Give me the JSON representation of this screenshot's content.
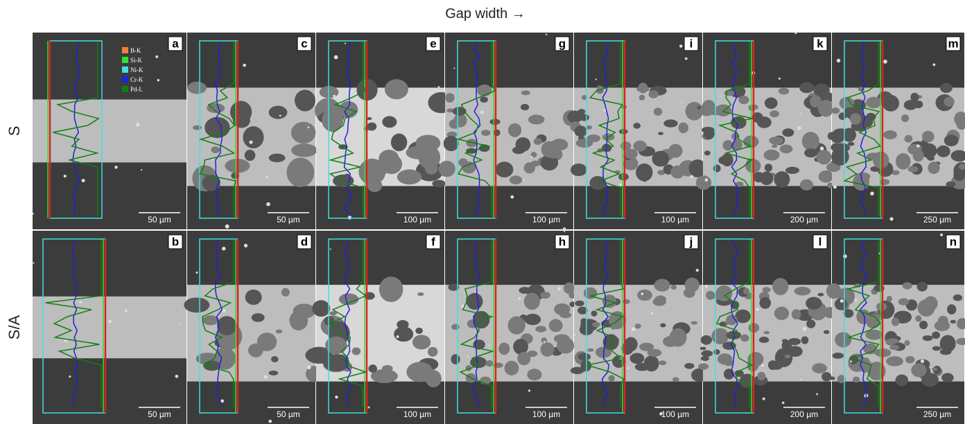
{
  "title": "Gap width →",
  "legend": [
    "B-K",
    "Si-K",
    "Ni-K",
    "Cr-K",
    "Pd-L"
  ],
  "rows": [
    {
      "label": "S",
      "panels": [
        {
          "letter": "a",
          "scale": "50 µm"
        },
        {
          "letter": "c",
          "scale": "50 µm"
        },
        {
          "letter": "e",
          "scale": "100 µm"
        },
        {
          "letter": "g",
          "scale": "100 µm"
        },
        {
          "letter": "i",
          "scale": "100 µm"
        },
        {
          "letter": "k",
          "scale": "200 µm"
        },
        {
          "letter": "m",
          "scale": "250 µm"
        }
      ]
    },
    {
      "label": "S/A",
      "panels": [
        {
          "letter": "b",
          "scale": "50 µm"
        },
        {
          "letter": "d",
          "scale": "50 µm"
        },
        {
          "letter": "f",
          "scale": "100 µm"
        },
        {
          "letter": "h",
          "scale": "100 µm"
        },
        {
          "letter": "j",
          "scale": "100 µm"
        },
        {
          "letter": "l",
          "scale": "200 µm"
        },
        {
          "letter": "n",
          "scale": "250 µm"
        }
      ]
    }
  ]
}
